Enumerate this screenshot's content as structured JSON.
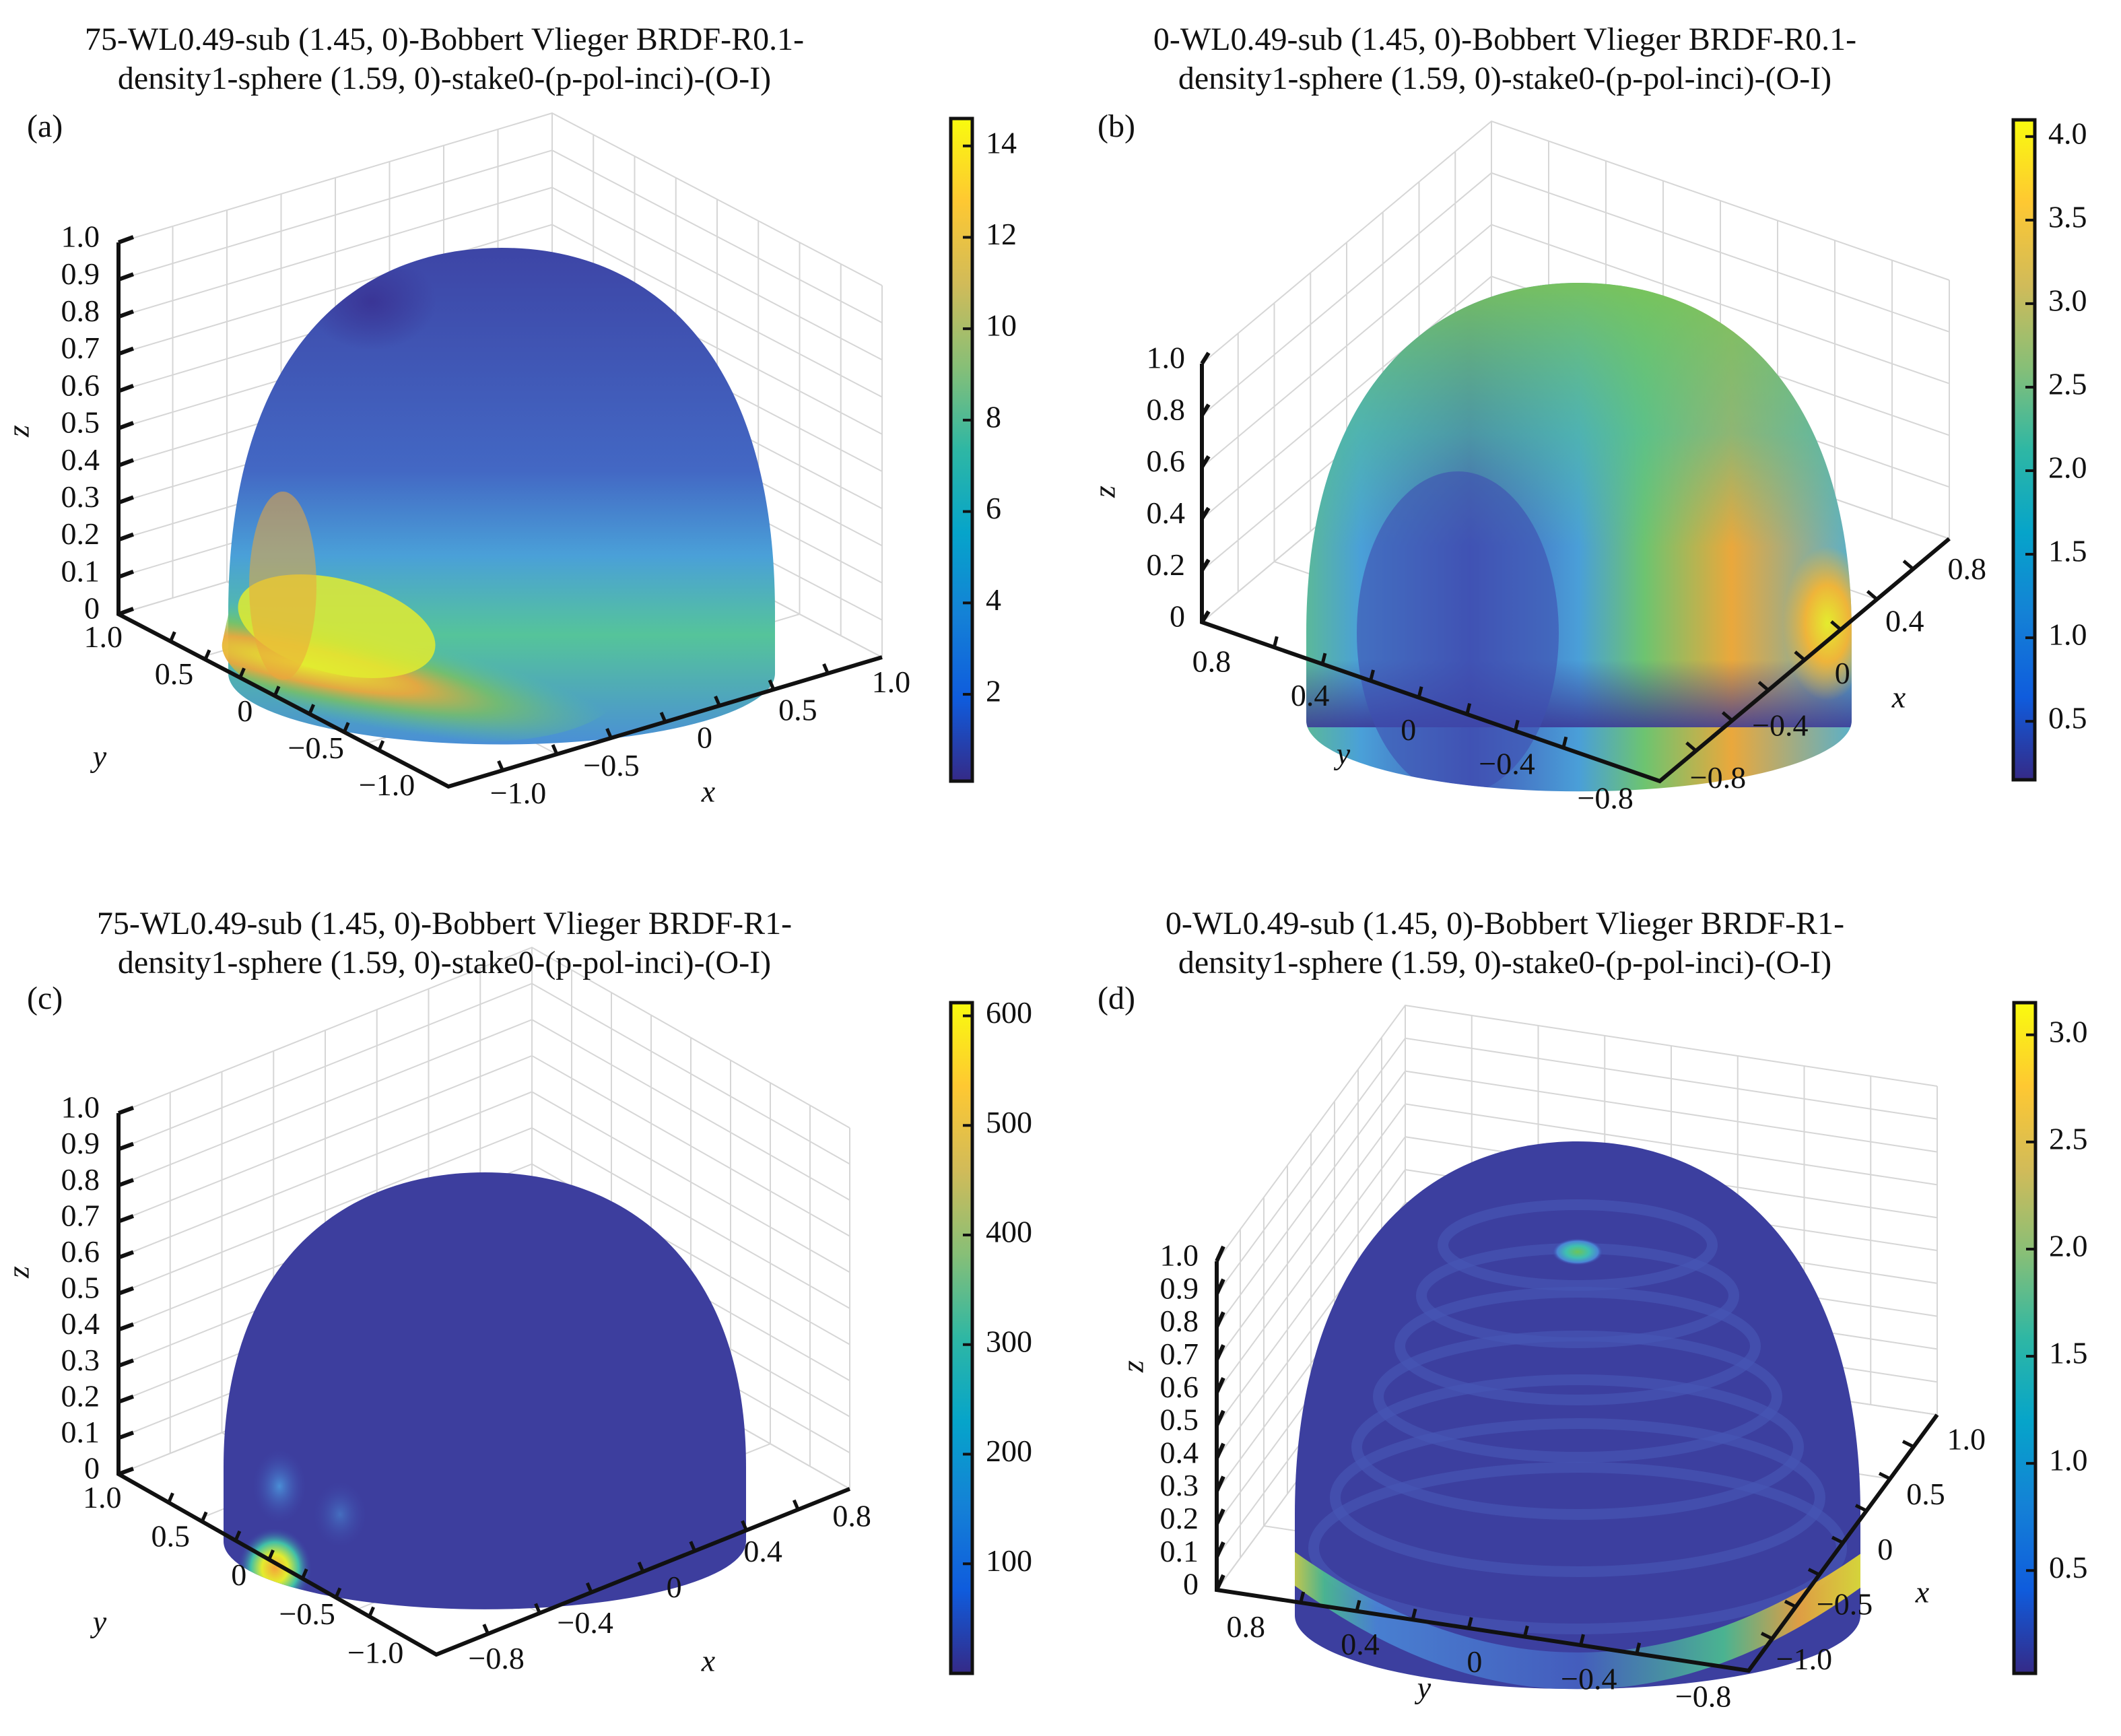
{
  "colormap": [
    "#352a87",
    "#0f5cdd",
    "#1481d6",
    "#06a4ca",
    "#2eb7a4",
    "#87bf77",
    "#d1bb59",
    "#fec832",
    "#f9fb0e"
  ],
  "chart_data": [
    {
      "id": "a",
      "type": "surface3d",
      "panel_label": "(a)",
      "title_line1": "75-WL0.49-sub (1.45, 0)-Bobbert Vlieger BRDF-R0.1-",
      "title_line2": "density1-sphere (1.59, 0)-stake0-(p-pol-inci)-(O-I)",
      "xlabel": "x",
      "ylabel": "y",
      "zlabel": "z",
      "x_ticks": [
        "−1.0",
        "−0.5",
        "0",
        "0.5",
        "1.0"
      ],
      "y_ticks": [
        "1.0",
        "0.5",
        "0",
        "−0.5",
        "−1.0"
      ],
      "z_ticks": [
        "0",
        "0.1",
        "0.2",
        "0.3",
        "0.4",
        "0.5",
        "0.6",
        "0.7",
        "0.8",
        "0.9",
        "1.0"
      ],
      "xlim": [
        -1,
        1
      ],
      "ylim": [
        -1,
        1
      ],
      "zlim": [
        0,
        1
      ],
      "colorbar": {
        "ticks": [
          "2",
          "4",
          "6",
          "8",
          "10",
          "12",
          "14"
        ],
        "tick_values": [
          2,
          4,
          6,
          8,
          10,
          12,
          14
        ],
        "range": [
          0.1,
          14.6
        ]
      },
      "surface": "hemisphere, peak ~14.5 near low elevation toward -x/+y, minimum near top",
      "hotspots": [
        {
          "value": 14.5,
          "az_from": "y=+0.8, x=-0.3",
          "elevation": 0.2
        }
      ],
      "grid": true
    },
    {
      "id": "b",
      "type": "surface3d",
      "panel_label": "(b)",
      "title_line1": "0-WL0.49-sub (1.45, 0)-Bobbert Vlieger BRDF-R0.1-",
      "title_line2": "density1-sphere (1.59, 0)-stake0-(p-pol-inci)-(O-I)",
      "xlabel": "x",
      "ylabel": "y",
      "zlabel": "z",
      "x_ticks": [
        "−0.8",
        "−0.4",
        "0",
        "0.4",
        "0.8"
      ],
      "y_ticks": [
        "0.8",
        "0.4",
        "0",
        "−0.4",
        "−0.8"
      ],
      "z_ticks": [
        "0",
        "0.2",
        "0.4",
        "0.6",
        "0.8",
        "1.0"
      ],
      "xlim": [
        -1,
        1
      ],
      "ylim": [
        -1,
        1
      ],
      "zlim": [
        0,
        1
      ],
      "colorbar": {
        "ticks": [
          "0.5",
          "1.0",
          "1.5",
          "2.0",
          "2.5",
          "3.0",
          "3.5",
          "4.0"
        ],
        "tick_values": [
          0.5,
          1,
          1.5,
          2,
          2.5,
          3,
          3.5,
          4
        ],
        "range": [
          0.15,
          4.1
        ]
      },
      "hotspots": [
        {
          "value": 4.0
        }
      ],
      "grid": true
    },
    {
      "id": "c",
      "type": "surface3d",
      "panel_label": "(c)",
      "title_line1": "75-WL0.49-sub (1.45, 0)-Bobbert Vlieger BRDF-R1-",
      "title_line2": "density1-sphere (1.59, 0)-stake0-(p-pol-inci)-(O-I)",
      "xlabel": "x",
      "ylabel": "y",
      "zlabel": "z",
      "x_ticks": [
        "−0.8",
        "−0.4",
        "0",
        "0.4",
        "0.8"
      ],
      "y_ticks": [
        "1.0",
        "0.5",
        "0",
        "−0.5",
        "−1.0"
      ],
      "z_ticks": [
        "0",
        "0.1",
        "0.2",
        "0.3",
        "0.4",
        "0.5",
        "0.6",
        "0.7",
        "0.8",
        "0.9",
        "1.0"
      ],
      "xlim": [
        -1,
        1
      ],
      "ylim": [
        -1,
        1
      ],
      "zlim": [
        0,
        1
      ],
      "colorbar": {
        "ticks": [
          "100",
          "200",
          "300",
          "400",
          "500",
          "600"
        ],
        "tick_values": [
          100,
          200,
          300,
          400,
          500,
          600
        ],
        "range": [
          0,
          612
        ]
      },
      "hotspots": [
        {
          "value": 560
        },
        {
          "value": 150
        }
      ],
      "grid": true
    },
    {
      "id": "d",
      "type": "surface3d",
      "panel_label": "(d)",
      "title_line1": "0-WL0.49-sub (1.45, 0)-Bobbert Vlieger BRDF-R1-",
      "title_line2": "density1-sphere (1.59, 0)-stake0-(p-pol-inci)-(O-I)",
      "xlabel": "x",
      "ylabel": "y",
      "zlabel": "z",
      "x_ticks": [
        "−1.0",
        "−0.5",
        "0",
        "0.5",
        "1.0"
      ],
      "y_ticks": [
        "0.8",
        "0.4",
        "0",
        "−0.4",
        "−0.8"
      ],
      "z_ticks": [
        "0",
        "0.1",
        "0.2",
        "0.3",
        "0.4",
        "0.5",
        "0.6",
        "0.7",
        "0.8",
        "0.9",
        "1.0"
      ],
      "xlim": [
        -1,
        1
      ],
      "ylim": [
        -1,
        1
      ],
      "zlim": [
        0,
        1
      ],
      "colorbar": {
        "ticks": [
          "0.5",
          "1.0",
          "1.5",
          "2.0",
          "2.5",
          "3.0"
        ],
        "tick_values": [
          0.5,
          1,
          1.5,
          2,
          2.5,
          3
        ],
        "range": [
          0.02,
          3.15
        ]
      },
      "hotspots": [
        {
          "value": 2.0
        },
        {
          "value": 3.0
        }
      ],
      "grid": true
    }
  ]
}
